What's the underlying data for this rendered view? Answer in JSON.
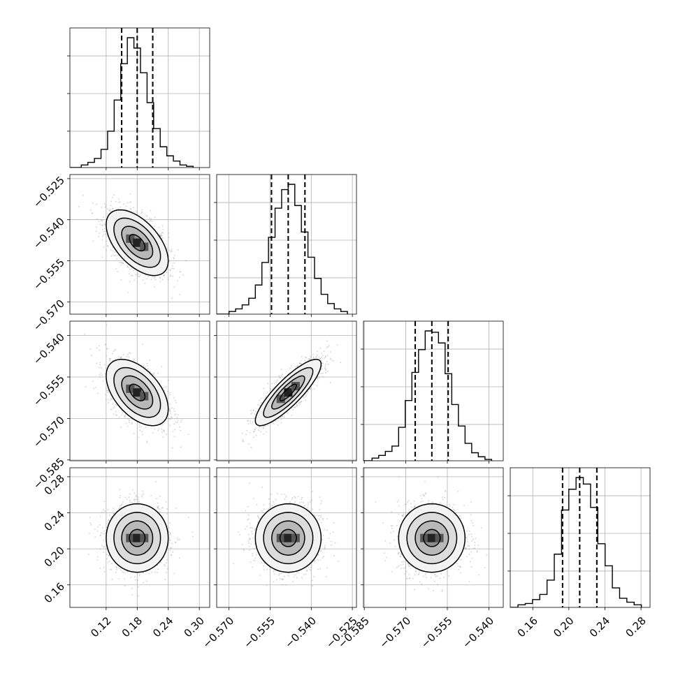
{
  "chart_data": {
    "type": "corner",
    "description_source": "triangle (corner) plot of 4 parameters",
    "params": [
      {
        "ticks": [
          0.12,
          0.18,
          0.24,
          0.3
        ],
        "tick_labels": [
          "0.12",
          "0.18",
          "0.24",
          "0.30"
        ],
        "range": [
          0.05,
          0.32
        ],
        "quantiles": [
          0.15,
          0.18,
          0.21
        ],
        "mean": 0.18,
        "sd": 0.03
      },
      {
        "ticks": [
          -0.57,
          -0.555,
          -0.54,
          -0.525
        ],
        "tick_labels": [
          "−0.570",
          "−0.555",
          "−0.540",
          "−0.525"
        ],
        "range": [
          -0.5745,
          -0.5235
        ],
        "quantiles": [
          -0.5545,
          -0.5484,
          -0.5423
        ],
        "mean": -0.5484,
        "sd": 0.006
      },
      {
        "ticks": [
          -0.585,
          -0.57,
          -0.555,
          -0.54
        ],
        "tick_labels": [
          "−0.585",
          "−0.570",
          "−0.555",
          "−0.540"
        ],
        "range": [
          -0.5853,
          -0.5348
        ],
        "quantiles": [
          -0.5666,
          -0.5606,
          -0.5547
        ],
        "mean": -0.5606,
        "sd": 0.006
      },
      {
        "ticks": [
          0.16,
          0.2,
          0.24,
          0.28
        ],
        "tick_labels": [
          "0.16",
          "0.20",
          "0.24",
          "0.28"
        ],
        "range": [
          0.135,
          0.29
        ],
        "quantiles": [
          0.193,
          0.212,
          0.231
        ],
        "mean": 0.212,
        "sd": 0.019
      }
    ],
    "histograms": [
      {
        "param": 0,
        "counts": [
          2,
          4,
          7,
          14,
          28,
          52,
          80,
          100,
          92,
          73,
          50,
          30,
          16,
          9,
          5,
          2,
          1
        ]
      },
      {
        "param": 1,
        "counts": [
          2,
          4,
          7,
          12,
          22,
          39,
          58,
          80,
          94,
          98,
          82,
          62,
          43,
          27,
          15,
          8,
          4,
          2
        ]
      },
      {
        "param": 2,
        "counts": [
          2,
          4,
          7,
          11,
          25,
          45,
          66,
          83,
          97,
          96,
          88,
          65,
          42,
          26,
          13,
          6,
          3,
          1
        ]
      },
      {
        "param": 3,
        "counts": [
          2,
          3,
          6,
          10,
          21,
          41,
          75,
          91,
          100,
          95,
          77,
          49,
          32,
          15,
          7,
          4,
          2
        ]
      }
    ],
    "correlations": [
      [
        1,
        -0.55,
        -0.5,
        0.0
      ],
      [
        -0.55,
        1,
        0.85,
        0.0
      ],
      [
        -0.5,
        0.85,
        1,
        0.0
      ],
      [
        0.0,
        0.0,
        0.0,
        1
      ]
    ],
    "contour_levels_sigma": [
      0.5,
      1.0,
      1.5,
      2.0
    ],
    "grid": true
  }
}
